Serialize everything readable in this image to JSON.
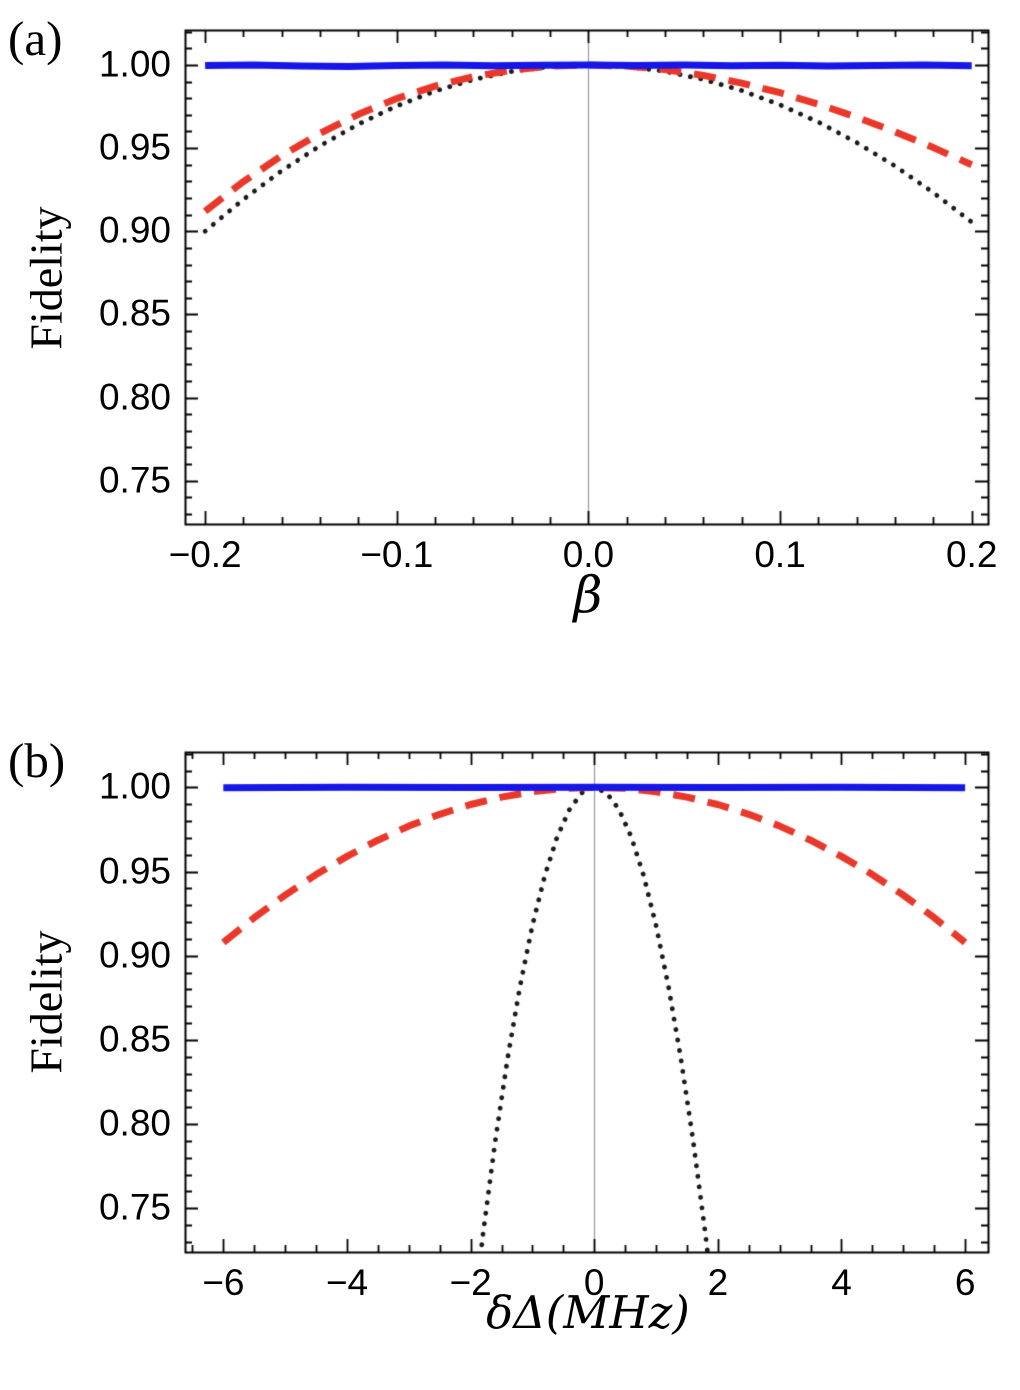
{
  "page": {
    "background": "#ffffff",
    "frame_color": "#000000",
    "center_line_color": "#999999",
    "text_color": "#000000"
  },
  "chart_data": [
    {
      "type": "line",
      "panel_label": "(a)",
      "xlabel": "β",
      "ylabel": "Fidelity",
      "xlim": [
        -0.2105,
        0.2085
      ],
      "ylim": [
        0.724,
        1.021
      ],
      "xticks": [
        -0.2,
        -0.1,
        0,
        0.1,
        0.2
      ],
      "xtick_labels": [
        "−0.2",
        "−0.1",
        "0.0",
        "0.1",
        "0.2"
      ],
      "xminor_step": 0.02,
      "yticks": [
        0.75,
        0.8,
        0.85,
        0.9,
        0.95,
        1.0
      ],
      "ytick_labels": [
        "0.75",
        "0.80",
        "0.85",
        "0.90",
        "0.95",
        "1.00"
      ],
      "yminor_step": 0.01,
      "vline_x": 0,
      "grid": false,
      "legend": null,
      "series": [
        {
          "name": "black-dotted",
          "color": "#1a1a1a",
          "style": "dotted",
          "width": 4.8,
          "points": [
            [
              -0.2,
              0.9
            ],
            [
              -0.18,
              0.9192
            ],
            [
              -0.16,
              0.9364
            ],
            [
              -0.14,
              0.9514
            ],
            [
              -0.12,
              0.9644
            ],
            [
              -0.1,
              0.9753
            ],
            [
              -0.08,
              0.9843
            ],
            [
              -0.06,
              0.9912
            ],
            [
              -0.04,
              0.9961
            ],
            [
              -0.02,
              0.999
            ],
            [
              0,
              1
            ],
            [
              0.02,
              0.999
            ],
            [
              0.04,
              0.9961
            ],
            [
              0.06,
              0.9913
            ],
            [
              0.08,
              0.9846
            ],
            [
              0.1,
              0.976
            ],
            [
              0.12,
              0.9656
            ],
            [
              0.14,
              0.9533
            ],
            [
              0.16,
              0.9392
            ],
            [
              0.18,
              0.9232
            ],
            [
              0.2,
              0.9055
            ]
          ]
        },
        {
          "name": "red-dashed",
          "color": "#e9382a",
          "style": "dashed",
          "width": 7,
          "points": [
            [
              -0.2,
              0.912
            ],
            [
              -0.18,
              0.9299
            ],
            [
              -0.16,
              0.9455
            ],
            [
              -0.14,
              0.9589
            ],
            [
              -0.12,
              0.9703
            ],
            [
              -0.1,
              0.9798
            ],
            [
              -0.08,
              0.9873
            ],
            [
              -0.06,
              0.993
            ],
            [
              -0.04,
              0.9969
            ],
            [
              -0.02,
              0.9993
            ],
            [
              0,
              1
            ],
            [
              0.02,
              0.9993
            ],
            [
              0.04,
              0.9972
            ],
            [
              0.06,
              0.9937
            ],
            [
              0.08,
              0.9891
            ],
            [
              0.1,
              0.9833
            ],
            [
              0.12,
              0.9764
            ],
            [
              0.14,
              0.9685
            ],
            [
              0.16,
              0.9598
            ],
            [
              0.18,
              0.9503
            ],
            [
              0.2,
              0.94
            ]
          ]
        },
        {
          "name": "blue-solid",
          "color": "#1616e8",
          "style": "solid",
          "width": 7,
          "points": [
            [
              -0.2,
              0.9996
            ],
            [
              -0.175,
              0.9999
            ],
            [
              -0.15,
              0.9993
            ],
            [
              -0.125,
              0.9991
            ],
            [
              -0.1,
              0.9996
            ],
            [
              -0.075,
              0.9999
            ],
            [
              -0.05,
              0.9995
            ],
            [
              -0.025,
              0.9998
            ],
            [
              0,
              1
            ],
            [
              0.025,
              0.9997
            ],
            [
              0.05,
              0.9999
            ],
            [
              0.075,
              0.9995
            ],
            [
              0.1,
              0.9998
            ],
            [
              0.125,
              0.9993
            ],
            [
              0.15,
              0.9996
            ],
            [
              0.175,
              0.9999
            ],
            [
              0.2,
              0.9995
            ]
          ]
        }
      ]
    },
    {
      "type": "line",
      "panel_label": "(b)",
      "xlabel": "δΔ(MHz)",
      "ylabel": "Fidelity",
      "xlim": [
        -6.62,
        6.37
      ],
      "ylim": [
        0.724,
        1.021
      ],
      "xticks": [
        -6,
        -4,
        -2,
        0,
        2,
        4,
        6
      ],
      "xtick_labels": [
        "−6",
        "−4",
        "−2",
        "0",
        "2",
        "4",
        "6"
      ],
      "xminor_step": 0.5,
      "yticks": [
        0.75,
        0.8,
        0.85,
        0.9,
        0.95,
        1.0
      ],
      "ytick_labels": [
        "0.75",
        "0.80",
        "0.85",
        "0.90",
        "0.95",
        "1.00"
      ],
      "yminor_step": 0.01,
      "vline_x": 0,
      "grid": false,
      "legend": null,
      "series": [
        {
          "name": "black-dotted",
          "color": "#1a1a1a",
          "style": "dotted",
          "width": 4.8,
          "points": [
            [
              -2,
              0.672
            ],
            [
              -1.8,
              0.7343
            ],
            [
              -1.6,
              0.7901
            ],
            [
              -1.4,
              0.8393
            ],
            [
              -1.2,
              0.8819
            ],
            [
              -1,
              0.918
            ],
            [
              -0.8,
              0.9475
            ],
            [
              -0.6,
              0.9705
            ],
            [
              -0.4,
              0.9869
            ],
            [
              -0.2,
              0.9967
            ],
            [
              0,
              1
            ],
            [
              0.2,
              0.9967
            ],
            [
              0.4,
              0.9869
            ],
            [
              0.6,
              0.9705
            ],
            [
              0.8,
              0.9475
            ],
            [
              1,
              0.918
            ],
            [
              1.2,
              0.8819
            ],
            [
              1.4,
              0.8393
            ],
            [
              1.6,
              0.7901
            ],
            [
              1.8,
              0.7343
            ],
            [
              2,
              0.672
            ]
          ]
        },
        {
          "name": "red-dashed",
          "color": "#e9382a",
          "style": "dashed",
          "width": 7,
          "points": [
            [
              -6,
              0.9078
            ],
            [
              -5.5,
              0.9226
            ],
            [
              -5,
              0.936
            ],
            [
              -4.5,
              0.9482
            ],
            [
              -4,
              0.959
            ],
            [
              -3.5,
              0.9686
            ],
            [
              -3,
              0.977
            ],
            [
              -2.5,
              0.984
            ],
            [
              -2,
              0.9898
            ],
            [
              -1.5,
              0.9942
            ],
            [
              -1,
              0.9974
            ],
            [
              -0.5,
              0.9994
            ],
            [
              0,
              1
            ],
            [
              0.5,
              0.9994
            ],
            [
              1,
              0.9974
            ],
            [
              1.5,
              0.9942
            ],
            [
              2,
              0.9898
            ],
            [
              2.5,
              0.984
            ],
            [
              3,
              0.977
            ],
            [
              3.5,
              0.9686
            ],
            [
              4,
              0.959
            ],
            [
              4.5,
              0.9482
            ],
            [
              5,
              0.936
            ],
            [
              5.5,
              0.9226
            ],
            [
              6,
              0.9078
            ]
          ]
        },
        {
          "name": "blue-solid",
          "color": "#1616e8",
          "style": "solid",
          "width": 7,
          "points": [
            [
              -6,
              0.9998
            ],
            [
              -4,
              1
            ],
            [
              -2,
              0.9999
            ],
            [
              0,
              1
            ],
            [
              2,
              0.9999
            ],
            [
              4,
              1
            ],
            [
              6,
              0.9998
            ]
          ]
        }
      ]
    }
  ]
}
